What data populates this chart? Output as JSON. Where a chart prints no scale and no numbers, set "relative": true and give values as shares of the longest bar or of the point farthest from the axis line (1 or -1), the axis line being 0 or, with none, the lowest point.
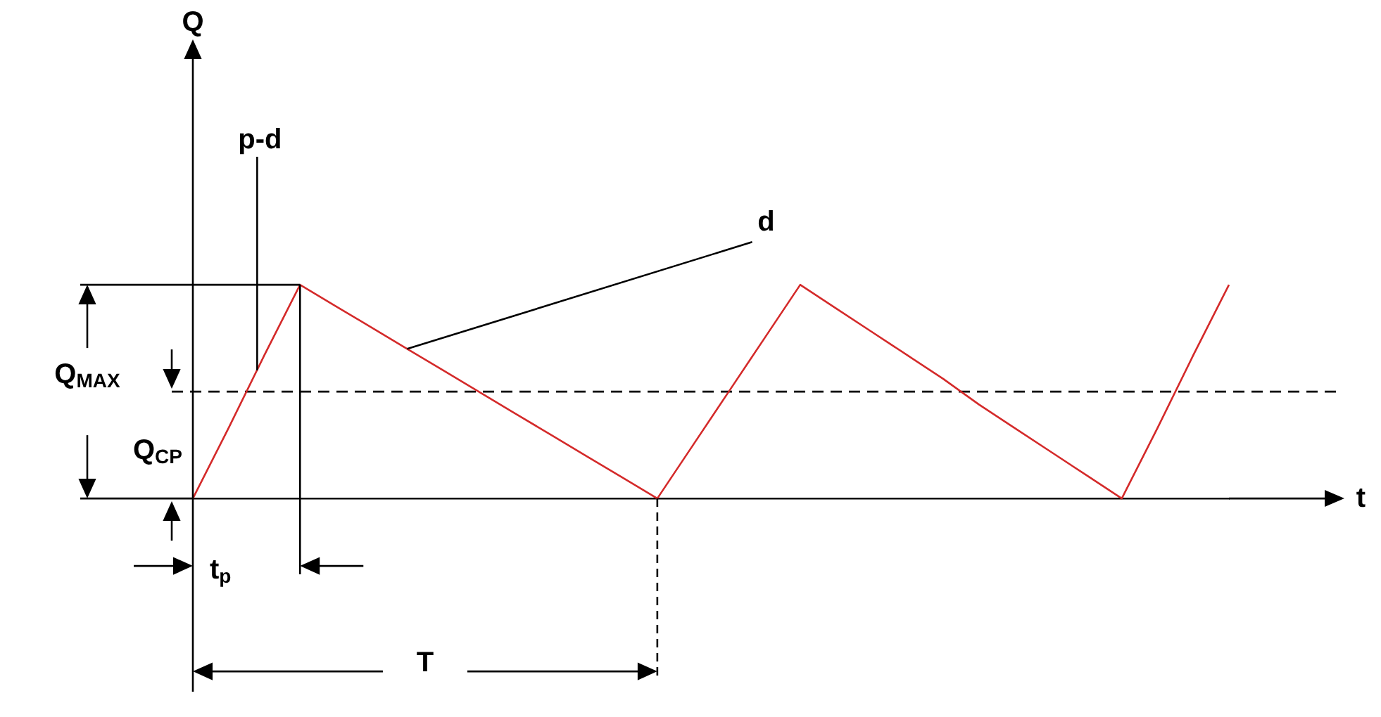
{
  "chart_data": {
    "type": "line",
    "relative": true,
    "xlabel": "t",
    "categories": [
      null,
      null,
      null,
      null,
      null,
      null,
      null,
      null,
      null,
      null,
      null,
      null,
      null,
      null,
      null,
      null,
      null,
      null,
      null,
      null,
      null,
      null,
      null,
      null,
      null,
      null,
      null,
      null,
      null,
      null
    ],
    "series": [
      {
        "color": "#d42a2a",
        "values": [
          0,
          0.33,
          0.67,
          1,
          0.9,
          0.8,
          0.7,
          0.6,
          0.5,
          0.4,
          0.3,
          0.2,
          0.1,
          0,
          0.25,
          0.5,
          0.75,
          1,
          0.89,
          0.78,
          0.67,
          0.56,
          0.44,
          0.33,
          0.22,
          0.11,
          0,
          0.33,
          0.67,
          1
        ]
      }
    ],
    "ref_lines": [
      {
        "axis": "y",
        "value": 0.5,
        "color": "#000000",
        "line_style": "dashed"
      }
    ],
    "annotations": [
      "Q",
      "p-d",
      "d",
      "Q$_{MAX}$",
      "Q$_{CP}$",
      "t$_{p}$",
      "T"
    ],
    "marker": "none",
    "line_style": "solid",
    "legend": false
  }
}
